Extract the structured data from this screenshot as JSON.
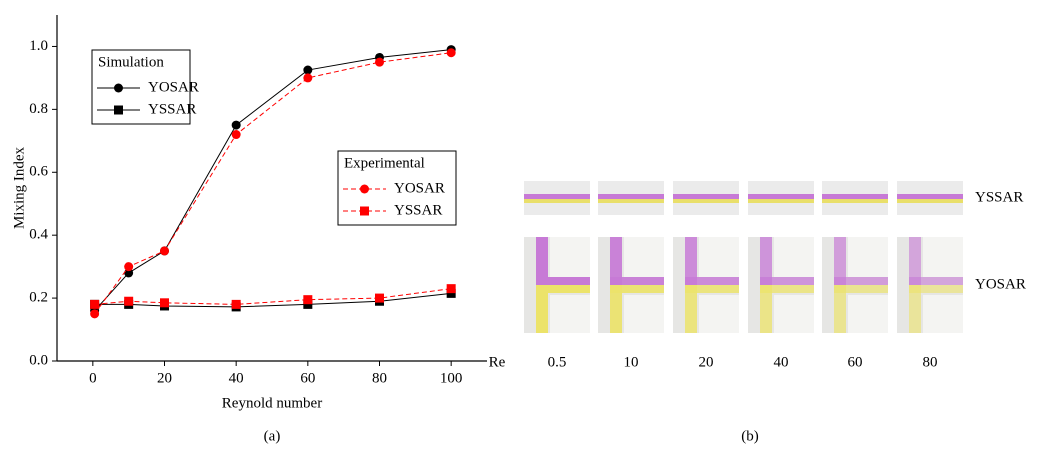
{
  "chart_data": {
    "type": "line",
    "x_label": "Reynold number",
    "y_label": "Mixing Index",
    "caption": "(a)",
    "x": [
      0.5,
      10,
      20,
      40,
      60,
      80,
      100
    ],
    "xlim": [
      -10,
      110
    ],
    "xticks": [
      0,
      20,
      40,
      60,
      80,
      100
    ],
    "ylim": [
      0,
      1.1
    ],
    "yticks": [
      {
        "value": 0,
        "label": "0.0"
      },
      0.2,
      0.4,
      0.6,
      0.8,
      {
        "value": 1,
        "label": "1.0"
      }
    ],
    "series": [
      {
        "name": "YOSAR",
        "group": "Simulation",
        "color": "#000000",
        "marker": "circle",
        "dashed": false,
        "values": [
          0.16,
          0.28,
          0.35,
          0.75,
          0.925,
          0.965,
          0.99
        ]
      },
      {
        "name": "YSSAR",
        "group": "Simulation",
        "color": "#000000",
        "marker": "square",
        "dashed": false,
        "values": [
          0.18,
          0.18,
          0.175,
          0.172,
          0.18,
          0.19,
          0.215
        ]
      },
      {
        "name": "YOSAR",
        "group": "Experimental",
        "color": "#ff0000",
        "marker": "circle",
        "dashed": true,
        "values": [
          0.15,
          0.3,
          0.35,
          0.72,
          0.9,
          0.95,
          0.98
        ]
      },
      {
        "name": "YSSAR",
        "group": "Experimental",
        "color": "#ff0000",
        "marker": "square",
        "dashed": true,
        "values": [
          0.18,
          0.19,
          0.185,
          0.18,
          0.195,
          0.2,
          0.23
        ]
      }
    ]
  },
  "panel_b": {
    "caption": "(b)",
    "row_labels": [
      "YSSAR",
      "YOSAR"
    ],
    "re_label": "Re",
    "re_values": [
      "0.5",
      "10",
      "20",
      "40",
      "60",
      "80"
    ]
  }
}
